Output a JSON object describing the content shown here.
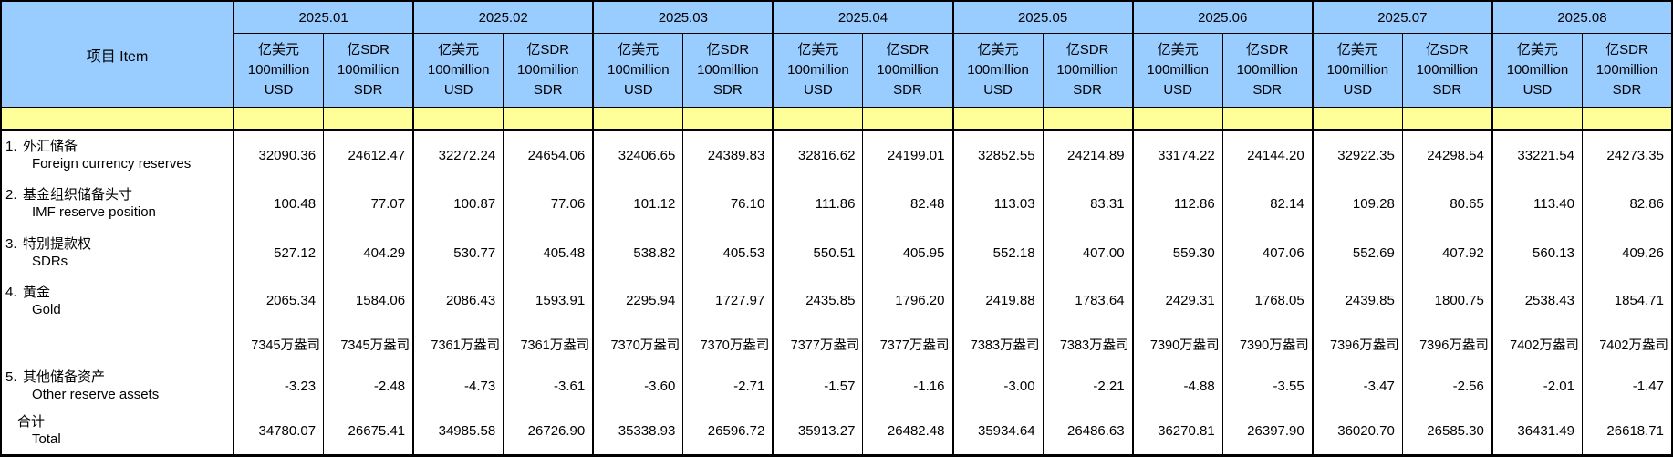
{
  "colors": {
    "header_blue": "#99CCFF",
    "band_yellow": "#FFFF99",
    "border": "#000000",
    "text": "#000000"
  },
  "chart_data": {
    "type": "table",
    "item_header": "项目  Item",
    "months": [
      "2025.01",
      "2025.02",
      "2025.03",
      "2025.04",
      "2025.05",
      "2025.06",
      "2025.07",
      "2025.08"
    ],
    "unit_headers": {
      "usd": [
        "亿美元",
        "100million",
        "USD"
      ],
      "sdr": [
        "亿SDR",
        "100million",
        "SDR"
      ]
    },
    "rows": [
      {
        "label_no": "1.",
        "label_zh": "外汇储备",
        "label_en": "Foreign currency reserves",
        "values": [
          "32090.36",
          "24612.47",
          "32272.24",
          "24654.06",
          "32406.65",
          "24389.83",
          "32816.62",
          "24199.01",
          "32852.55",
          "24214.89",
          "33174.22",
          "24144.20",
          "32922.35",
          "24298.54",
          "33221.54",
          "24273.35"
        ]
      },
      {
        "label_no": "2.",
        "label_zh": "基金组织储备头寸",
        "label_en": "IMF reserve position",
        "values": [
          "100.48",
          "77.07",
          "100.87",
          "77.06",
          "101.12",
          "76.10",
          "111.86",
          "82.48",
          "113.03",
          "83.31",
          "112.86",
          "82.14",
          "109.28",
          "80.65",
          "113.40",
          "82.86"
        ]
      },
      {
        "label_no": "3.",
        "label_zh": "特别提款权",
        "label_en": "SDRs",
        "values": [
          "527.12",
          "404.29",
          "530.77",
          "405.48",
          "538.82",
          "405.53",
          "550.51",
          "405.95",
          "552.18",
          "407.00",
          "559.30",
          "407.06",
          "552.69",
          "407.92",
          "560.13",
          "409.26"
        ]
      },
      {
        "label_no": "4.",
        "label_zh": "黄金",
        "label_en": "Gold",
        "values": [
          "2065.34",
          "1584.06",
          "2086.43",
          "1593.91",
          "2295.94",
          "1727.97",
          "2435.85",
          "1796.20",
          "2419.88",
          "1783.64",
          "2429.31",
          "1768.05",
          "2439.85",
          "1800.75",
          "2538.43",
          "1854.71"
        ]
      },
      {
        "label_no": "",
        "label_zh": "",
        "label_en": "",
        "values": [
          "7345万盎司",
          "7345万盎司",
          "7361万盎司",
          "7361万盎司",
          "7370万盎司",
          "7370万盎司",
          "7377万盎司",
          "7377万盎司",
          "7383万盎司",
          "7383万盎司",
          "7390万盎司",
          "7390万盎司",
          "7396万盎司",
          "7396万盎司",
          "7402万盎司",
          "7402万盎司"
        ]
      },
      {
        "label_no": "5.",
        "label_zh": "其他储备资产",
        "label_en": "Other reserve assets",
        "values": [
          "-3.23",
          "-2.48",
          "-4.73",
          "-3.61",
          "-3.60",
          "-2.71",
          "-1.57",
          "-1.16",
          "-3.00",
          "-2.21",
          "-4.88",
          "-3.55",
          "-3.47",
          "-2.56",
          "-2.01",
          "-1.47"
        ]
      },
      {
        "label_no": "",
        "label_zh": "合计",
        "label_en": "Total",
        "values": [
          "34780.07",
          "26675.41",
          "34985.58",
          "26726.90",
          "35338.93",
          "26596.72",
          "35913.27",
          "26482.48",
          "35934.64",
          "26486.63",
          "36270.81",
          "26397.90",
          "36020.70",
          "26585.30",
          "36431.49",
          "26618.71"
        ]
      }
    ]
  }
}
